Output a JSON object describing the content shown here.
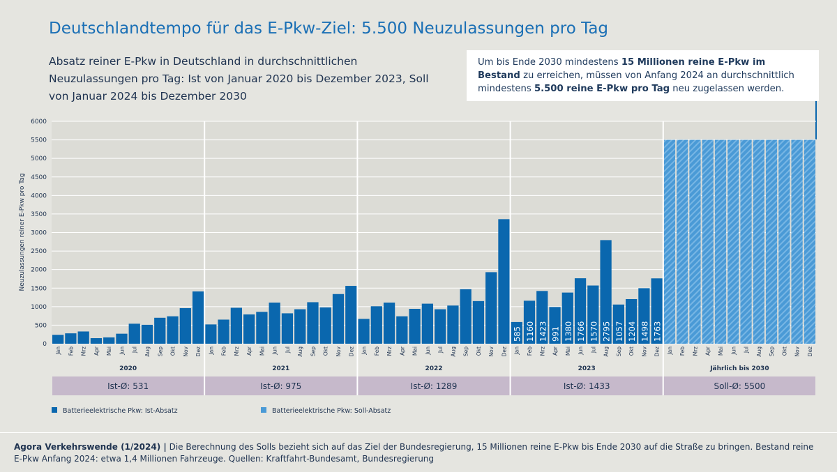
{
  "chart_data": {
    "type": "bar",
    "title": "Deutschlandtempo für das E-Pkw-Ziel: 5.500 Neuzulassungen pro Tag",
    "subtitle": "Absatz reiner E-Pkw in Deutschland in durchschnittlichen Neuzulassungen pro Tag: Ist von Januar 2020 bis Dezember 2023, Soll von Januar 2024 bis Dezember 2030",
    "callout": [
      {
        "text": "Um bis Ende 2030 mindestens "
      },
      {
        "text": "15 Millionen reine E-Pkw im Bestand",
        "bold": true
      },
      {
        "text": " zu erreichen, müssen von Anfang 2024 an durchschnittlich mindestens "
      },
      {
        "text": "5.500 reine E-Pkw pro Tag",
        "bold": true
      },
      {
        "text": " neu zugelassen werden."
      }
    ],
    "ylabel": "Neuzulassungen reiner E-Pkw pro Tag",
    "ylim": [
      0,
      6000
    ],
    "yticks": [
      0,
      500,
      1000,
      1500,
      2000,
      2500,
      3000,
      3500,
      4000,
      4500,
      5000,
      5500,
      6000
    ],
    "grid": true,
    "categories": [
      "Jan",
      "Feb",
      "Mrz",
      "Apr",
      "Mai",
      "Jun",
      "Jul",
      "Aug",
      "Sep",
      "Okt",
      "Nov",
      "Dez",
      "Jan",
      "Feb",
      "Mrz",
      "Apr",
      "Mai",
      "Jun",
      "Jul",
      "Aug",
      "Sep",
      "Okt",
      "Nov",
      "Dez",
      "Jan",
      "Feb",
      "Mrz",
      "Apr",
      "Mai",
      "Jun",
      "Jul",
      "Aug",
      "Sep",
      "Okt",
      "Nov",
      "Dez",
      "Jan",
      "Feb",
      "Mrz",
      "Apr",
      "Mai",
      "Jun",
      "Jul",
      "Aug",
      "Sep",
      "Okt",
      "Nov",
      "Dez",
      "Jan",
      "Feb",
      "Mrz",
      "Apr",
      "Mai",
      "Jun",
      "Jul",
      "Aug",
      "Sep",
      "Okt",
      "Nov",
      "Dez"
    ],
    "groups": [
      {
        "label": "2020",
        "average": "Ist-Ø: 531"
      },
      {
        "label": "2021",
        "average": "Ist-Ø: 975"
      },
      {
        "label": "2022",
        "average": "Ist-Ø: 1289"
      },
      {
        "label": "2023",
        "average": "Ist-Ø: 1433",
        "data_labels": true
      },
      {
        "label": "Jährlich bis 2030",
        "average": "Soll-Ø: 5500"
      }
    ],
    "series": [
      {
        "name": "Batterieelektrische Pkw: Ist-Absatz",
        "color": "#0a67ae",
        "values": [
          240,
          280,
          330,
          150,
          170,
          270,
          540,
          510,
          700,
          740,
          960,
          1410,
          520,
          650,
          970,
          790,
          860,
          1110,
          820,
          930,
          1120,
          980,
          1340,
          1560,
          670,
          1010,
          1110,
          740,
          940,
          1080,
          930,
          1030,
          1470,
          1150,
          1930,
          3360,
          585,
          1160,
          1423,
          991,
          1380,
          1766,
          1570,
          2795,
          1057,
          1204,
          1498,
          1763,
          null,
          null,
          null,
          null,
          null,
          null,
          null,
          null,
          null,
          null,
          null,
          null
        ]
      },
      {
        "name": "Batterieelektrische Pkw: Soll-Absatz",
        "color": "#4a9ad6",
        "hatched": true,
        "values": [
          null,
          null,
          null,
          null,
          null,
          null,
          null,
          null,
          null,
          null,
          null,
          null,
          null,
          null,
          null,
          null,
          null,
          null,
          null,
          null,
          null,
          null,
          null,
          null,
          null,
          null,
          null,
          null,
          null,
          null,
          null,
          null,
          null,
          null,
          null,
          null,
          null,
          null,
          null,
          null,
          null,
          null,
          null,
          null,
          null,
          null,
          null,
          null,
          5500,
          5500,
          5500,
          5500,
          5500,
          5500,
          5500,
          5500,
          5500,
          5500,
          5500,
          5500
        ]
      }
    ],
    "source_label": "Agora Verkehrswende (1/2024) |",
    "source": "Die Berechnung des Solls bezieht sich auf das Ziel der Bundesregierung, 15 Millionen reine E-Pkw bis Ende 2030 auf die Straße zu bringen. Bestand reine E-Pkw Anfang 2024: etwa 1,4 Millionen Fahrzeuge. Quellen: Kraftfahrt-Bundesamt, Bundesregierung"
  }
}
